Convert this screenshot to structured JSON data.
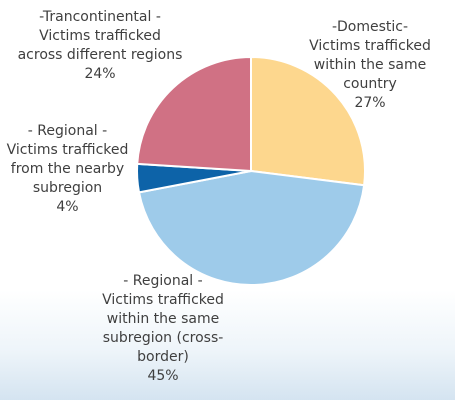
{
  "chart_data": {
    "type": "pie",
    "title": "",
    "slices": [
      {
        "name": "Domestic",
        "value": 27,
        "color": "#fdd78e",
        "label_lines": [
          "-Domestic-",
          "Victims trafficked",
          "within the same",
          "country",
          "27%"
        ]
      },
      {
        "name": "Regional (cross-border)",
        "value": 45,
        "color": "#9ecbea",
        "label_lines": [
          "- Regional -",
          "Victims trafficked",
          "within the same",
          "subregion (cross-",
          "border)",
          "45%"
        ]
      },
      {
        "name": "Regional (nearby subregion)",
        "value": 4,
        "color": "#0d63a8",
        "label_lines": [
          "- Regional -",
          "Victims trafficked",
          "from the nearby",
          "subregion",
          "4%"
        ]
      },
      {
        "name": "Trancontinental",
        "value": 24,
        "color": "#d07184",
        "label_lines": [
          "-Trancontinental -",
          "Victims trafficked",
          "across different regions",
          "24%"
        ]
      }
    ]
  }
}
